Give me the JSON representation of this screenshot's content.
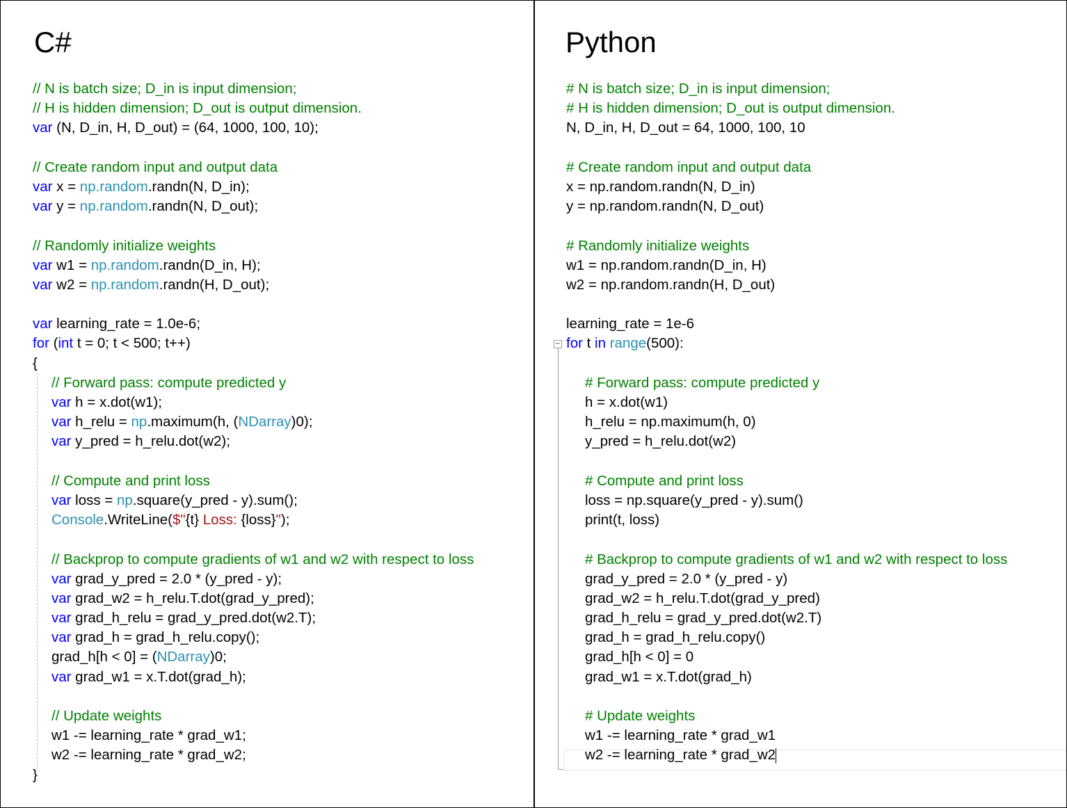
{
  "colors": {
    "keyword": "#0000ff",
    "comment": "#008000",
    "type": "#2b91af",
    "string": "#a31515"
  },
  "csharp": {
    "title": "C#",
    "lines": [
      {
        "i": 0,
        "s": [
          [
            "c",
            "// N is batch size; D_in is input dimension;"
          ]
        ]
      },
      {
        "i": 0,
        "s": [
          [
            "c",
            "// H is hidden dimension; D_out is output dimension."
          ]
        ]
      },
      {
        "i": 0,
        "s": [
          [
            "k",
            "var"
          ],
          [
            "p",
            " (N, D_in, H, D_out) = (64, 1000, 100, 10);"
          ]
        ]
      },
      {
        "i": 0,
        "s": []
      },
      {
        "i": 0,
        "s": [
          [
            "c",
            "// Create random input and output data"
          ]
        ]
      },
      {
        "i": 0,
        "s": [
          [
            "k",
            "var"
          ],
          [
            "p",
            " x = "
          ],
          [
            "t",
            "np.random"
          ],
          [
            "p",
            ".randn(N, D_in);"
          ]
        ]
      },
      {
        "i": 0,
        "s": [
          [
            "k",
            "var"
          ],
          [
            "p",
            " y = "
          ],
          [
            "t",
            "np.random"
          ],
          [
            "p",
            ".randn(N, D_out);"
          ]
        ]
      },
      {
        "i": 0,
        "s": []
      },
      {
        "i": 0,
        "s": [
          [
            "c",
            "// Randomly initialize weights"
          ]
        ]
      },
      {
        "i": 0,
        "s": [
          [
            "k",
            "var"
          ],
          [
            "p",
            " w1 = "
          ],
          [
            "t",
            "np.random"
          ],
          [
            "p",
            ".randn(D_in, H);"
          ]
        ]
      },
      {
        "i": 0,
        "s": [
          [
            "k",
            "var"
          ],
          [
            "p",
            " w2 = "
          ],
          [
            "t",
            "np.random"
          ],
          [
            "p",
            ".randn(H, D_out);"
          ]
        ]
      },
      {
        "i": 0,
        "s": []
      },
      {
        "i": 0,
        "s": [
          [
            "k",
            "var"
          ],
          [
            "p",
            " learning_rate = 1.0e-6;"
          ]
        ]
      },
      {
        "i": 0,
        "s": [
          [
            "k",
            "for"
          ],
          [
            "p",
            " ("
          ],
          [
            "k",
            "int"
          ],
          [
            "p",
            " t = 0; t < 500; t++)"
          ]
        ]
      },
      {
        "i": 0,
        "s": [
          [
            "p",
            "{"
          ]
        ]
      },
      {
        "i": 1,
        "s": [
          [
            "c",
            "// Forward pass: compute predicted y"
          ]
        ]
      },
      {
        "i": 1,
        "s": [
          [
            "k",
            "var"
          ],
          [
            "p",
            " h = x.dot(w1);"
          ]
        ]
      },
      {
        "i": 1,
        "s": [
          [
            "k",
            "var"
          ],
          [
            "p",
            " h_relu = "
          ],
          [
            "t",
            "np"
          ],
          [
            "p",
            ".maximum(h, ("
          ],
          [
            "t",
            "NDarray"
          ],
          [
            "p",
            ")0);"
          ]
        ]
      },
      {
        "i": 1,
        "s": [
          [
            "k",
            "var"
          ],
          [
            "p",
            " y_pred = h_relu.dot(w2);"
          ]
        ]
      },
      {
        "i": 1,
        "s": []
      },
      {
        "i": 1,
        "s": [
          [
            "c",
            "// Compute and print loss"
          ]
        ]
      },
      {
        "i": 1,
        "s": [
          [
            "k",
            "var"
          ],
          [
            "p",
            " loss = "
          ],
          [
            "t",
            "np"
          ],
          [
            "p",
            ".square(y_pred - y).sum();"
          ]
        ]
      },
      {
        "i": 1,
        "s": [
          [
            "t",
            "Console"
          ],
          [
            "p",
            ".WriteLine("
          ],
          [
            "s",
            "$\""
          ],
          [
            "p",
            "{t}"
          ],
          [
            "s",
            " Loss: "
          ],
          [
            "p",
            "{loss}"
          ],
          [
            "s",
            "\""
          ],
          [
            "p",
            ");"
          ]
        ]
      },
      {
        "i": 1,
        "s": []
      },
      {
        "i": 1,
        "s": [
          [
            "c",
            "// Backprop to compute gradients of w1 and w2 with respect to loss"
          ]
        ]
      },
      {
        "i": 1,
        "s": [
          [
            "k",
            "var"
          ],
          [
            "p",
            " grad_y_pred = 2.0 * (y_pred - y);"
          ]
        ]
      },
      {
        "i": 1,
        "s": [
          [
            "k",
            "var"
          ],
          [
            "p",
            " grad_w2 = h_relu.T.dot(grad_y_pred);"
          ]
        ]
      },
      {
        "i": 1,
        "s": [
          [
            "k",
            "var"
          ],
          [
            "p",
            " grad_h_relu = grad_y_pred.dot(w2.T);"
          ]
        ]
      },
      {
        "i": 1,
        "s": [
          [
            "k",
            "var"
          ],
          [
            "p",
            " grad_h = grad_h_relu.copy();"
          ]
        ]
      },
      {
        "i": 1,
        "s": [
          [
            "p",
            "grad_h[h < 0] = ("
          ],
          [
            "t",
            "NDarray"
          ],
          [
            "p",
            ")0;"
          ]
        ]
      },
      {
        "i": 1,
        "s": [
          [
            "k",
            "var"
          ],
          [
            "p",
            " grad_w1 = x.T.dot(grad_h);"
          ]
        ]
      },
      {
        "i": 1,
        "s": []
      },
      {
        "i": 1,
        "s": [
          [
            "c",
            "// Update weights"
          ]
        ]
      },
      {
        "i": 1,
        "s": [
          [
            "p",
            "w1 -= learning_rate * grad_w1;"
          ]
        ]
      },
      {
        "i": 1,
        "s": [
          [
            "p",
            "w2 -= learning_rate * grad_w2;"
          ]
        ]
      },
      {
        "i": 0,
        "s": [
          [
            "p",
            "}"
          ]
        ]
      }
    ]
  },
  "python": {
    "title": "Python",
    "lines": [
      {
        "i": 0,
        "s": [
          [
            "c",
            "# N is batch size; D_in is input dimension;"
          ]
        ]
      },
      {
        "i": 0,
        "s": [
          [
            "c",
            "# H is hidden dimension; D_out is output dimension."
          ]
        ]
      },
      {
        "i": 0,
        "s": [
          [
            "p",
            "N, D_in, H, D_out = 64, 1000, 100, 10"
          ]
        ]
      },
      {
        "i": 0,
        "s": []
      },
      {
        "i": 0,
        "s": [
          [
            "c",
            "# Create random input and output data"
          ]
        ]
      },
      {
        "i": 0,
        "s": [
          [
            "p",
            "x = np.random.randn(N, D_in)"
          ]
        ]
      },
      {
        "i": 0,
        "s": [
          [
            "p",
            "y = np.random.randn(N, D_out)"
          ]
        ]
      },
      {
        "i": 0,
        "s": []
      },
      {
        "i": 0,
        "s": [
          [
            "c",
            "# Randomly initialize weights"
          ]
        ]
      },
      {
        "i": 0,
        "s": [
          [
            "p",
            "w1 = np.random.randn(D_in, H)"
          ]
        ]
      },
      {
        "i": 0,
        "s": [
          [
            "p",
            "w2 = np.random.randn(H, D_out)"
          ]
        ]
      },
      {
        "i": 0,
        "s": []
      },
      {
        "i": 0,
        "s": [
          [
            "p",
            "learning_rate = 1e-6"
          ]
        ]
      },
      {
        "i": 0,
        "s": [
          [
            "k",
            "for"
          ],
          [
            "p",
            " t "
          ],
          [
            "k",
            "in"
          ],
          [
            "p",
            " "
          ],
          [
            "t",
            "range"
          ],
          [
            "p",
            "(500):"
          ]
        ]
      },
      {
        "i": 0,
        "s": []
      },
      {
        "i": 1,
        "s": [
          [
            "c",
            "# Forward pass: compute predicted y"
          ]
        ]
      },
      {
        "i": 1,
        "s": [
          [
            "p",
            "h = x.dot(w1)"
          ]
        ]
      },
      {
        "i": 1,
        "s": [
          [
            "p",
            "h_relu = np.maximum(h, 0)"
          ]
        ]
      },
      {
        "i": 1,
        "s": [
          [
            "p",
            "y_pred = h_relu.dot(w2)"
          ]
        ]
      },
      {
        "i": 1,
        "s": []
      },
      {
        "i": 1,
        "s": [
          [
            "c",
            "# Compute and print loss"
          ]
        ]
      },
      {
        "i": 1,
        "s": [
          [
            "p",
            "loss = np.square(y_pred - y).sum()"
          ]
        ]
      },
      {
        "i": 1,
        "s": [
          [
            "p",
            "print(t, loss)"
          ]
        ]
      },
      {
        "i": 1,
        "s": []
      },
      {
        "i": 1,
        "s": [
          [
            "c",
            "# Backprop to compute gradients of w1 and w2 with respect to loss"
          ]
        ]
      },
      {
        "i": 1,
        "s": [
          [
            "p",
            "grad_y_pred = 2.0 * (y_pred - y)"
          ]
        ]
      },
      {
        "i": 1,
        "s": [
          [
            "p",
            "grad_w2 = h_relu.T.dot(grad_y_pred)"
          ]
        ]
      },
      {
        "i": 1,
        "s": [
          [
            "p",
            "grad_h_relu = grad_y_pred.dot(w2.T)"
          ]
        ]
      },
      {
        "i": 1,
        "s": [
          [
            "p",
            "grad_h = grad_h_relu.copy()"
          ]
        ]
      },
      {
        "i": 1,
        "s": [
          [
            "p",
            "grad_h[h < 0] = 0"
          ]
        ]
      },
      {
        "i": 1,
        "s": [
          [
            "p",
            "grad_w1 = x.T.dot(grad_h)"
          ]
        ]
      },
      {
        "i": 1,
        "s": []
      },
      {
        "i": 1,
        "s": [
          [
            "c",
            "# Update weights"
          ]
        ]
      },
      {
        "i": 1,
        "s": [
          [
            "p",
            "w1 -= learning_rate * grad_w1"
          ]
        ]
      },
      {
        "i": 1,
        "s": [
          [
            "p",
            "w2 -= learning_rate * grad_w2"
          ]
        ]
      }
    ]
  }
}
